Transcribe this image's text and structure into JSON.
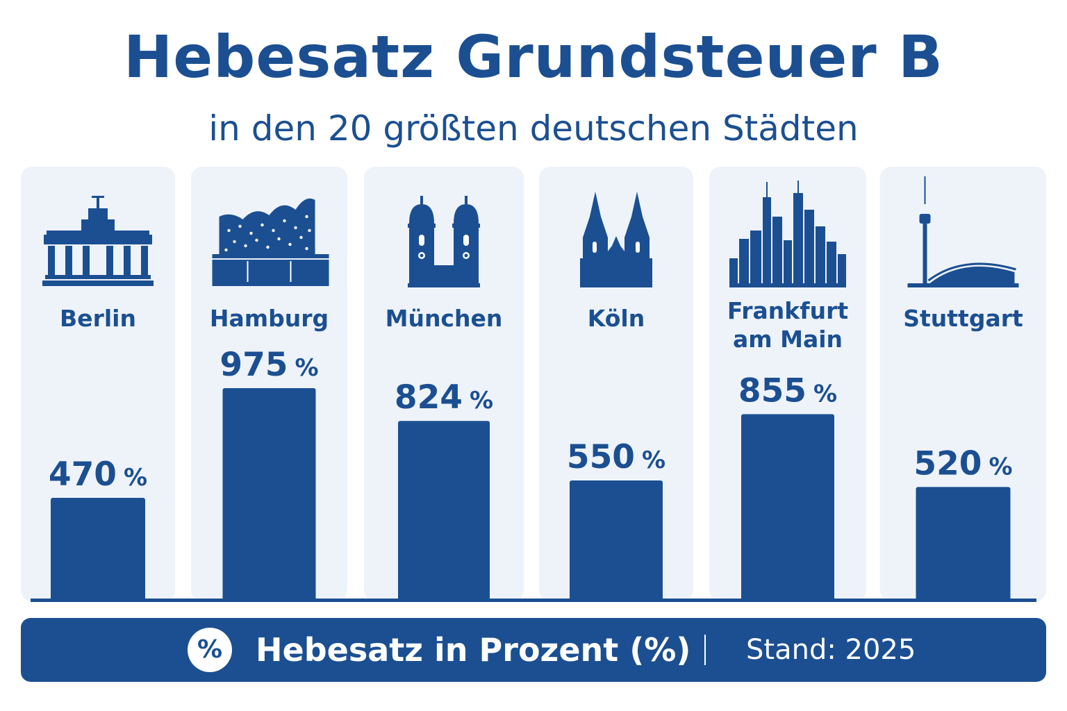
{
  "header": {
    "title": "Hebesatz Grundsteuer B",
    "subtitle": "in den 20 größten deutschen Städten"
  },
  "colors": {
    "primary": "#1b4f91",
    "panel": "#eef3fa",
    "background": "#ffffff"
  },
  "chart_data": {
    "type": "bar",
    "title": "Hebesatz Grundsteuer B",
    "subtitle": "in den 20 größten deutschen Städten",
    "categories": [
      "Berlin",
      "Hamburg",
      "München",
      "Köln",
      "Frankfurt am Main",
      "Stuttgart"
    ],
    "category_lines": [
      [
        "Berlin"
      ],
      [
        "Hamburg"
      ],
      [
        "München"
      ],
      [
        "Köln"
      ],
      [
        "Frankfurt",
        "am Main"
      ],
      [
        "Stuttgart"
      ]
    ],
    "values": [
      470,
      975,
      824,
      550,
      855,
      520
    ],
    "value_unit": "%",
    "icons": [
      "brandenburg-gate-icon",
      "elbphilharmonie-icon",
      "frauenkirche-icon",
      "cologne-cathedral-icon",
      "frankfurt-skyline-icon",
      "stuttgart-tv-tower-icon"
    ],
    "xlabel": "",
    "ylabel": "",
    "ylim": [
      0,
      1200
    ],
    "grid": false
  },
  "footer": {
    "percent_symbol": "%",
    "legend_label": "Hebesatz in Prozent (%)",
    "stand": "Stand: 2025"
  }
}
